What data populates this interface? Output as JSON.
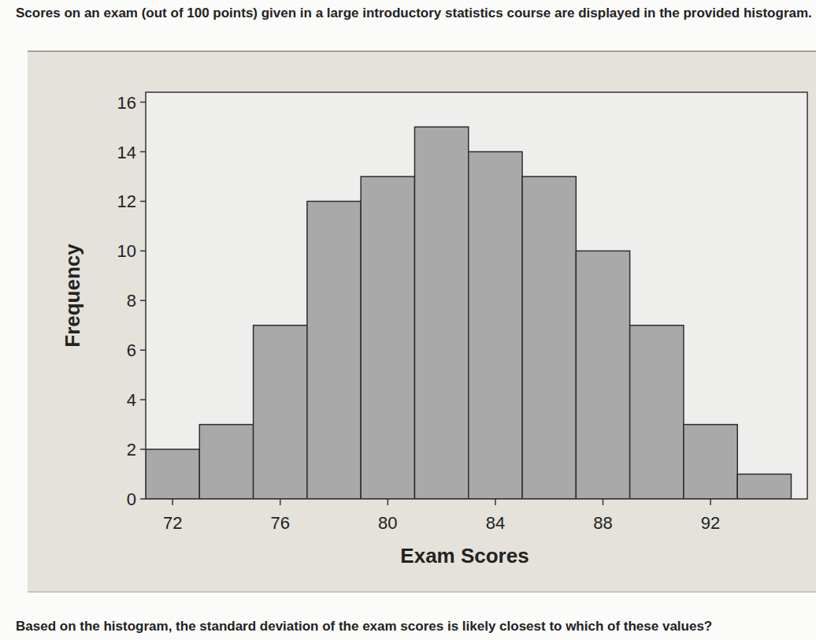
{
  "header": {
    "text": "Scores on an exam (out of 100 points) given in a large introductory statistics course are displayed in the provided histogram."
  },
  "chart_data": {
    "type": "histogram",
    "x_label": "Exam Scores",
    "y_label": "Frequency",
    "bins": [
      71,
      73,
      75,
      77,
      79,
      81,
      83,
      85,
      87,
      89,
      91,
      93,
      95
    ],
    "values": [
      2,
      3,
      7,
      12,
      13,
      15,
      14,
      13,
      10,
      7,
      3,
      1
    ],
    "color": "#a9a9a9",
    "xlim": [
      71,
      95.6
    ],
    "xticks": [
      72,
      76,
      80,
      84,
      88,
      92
    ],
    "ylim": [
      0,
      16.4
    ],
    "yticks": [
      0,
      2,
      4,
      6,
      8,
      10,
      12,
      14,
      16
    ],
    "grid": false
  },
  "footer": {
    "text": "Based on the histogram, the standard deviation of the exam scores is likely closest to which of these values?"
  }
}
